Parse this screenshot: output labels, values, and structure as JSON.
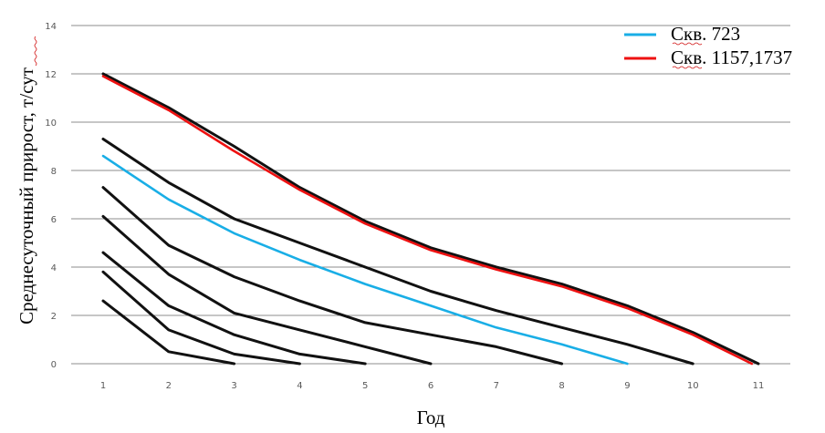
{
  "chart_data": {
    "type": "line",
    "title": "",
    "xlabel": "Год",
    "ylabel": "Среднесуточный прирост, т/сут",
    "xlim": [
      1,
      11
    ],
    "ylim": [
      0,
      14
    ],
    "x_ticks": [
      1,
      2,
      3,
      4,
      5,
      6,
      7,
      8,
      9,
      10,
      11
    ],
    "y_ticks": [
      0,
      2,
      4,
      6,
      8,
      10,
      12,
      14
    ],
    "grid": "horizontal",
    "legend_position": "top-right",
    "legend": [
      {
        "label": "Скв. 723",
        "color": "#19aee6"
      },
      {
        "label": "Скв. 1157,1737",
        "color": "#ee1111"
      }
    ],
    "series": [
      {
        "name": "",
        "color": "#111111",
        "x": [
          1,
          2,
          3,
          4,
          5,
          6,
          7,
          8,
          9,
          10,
          11
        ],
        "y": [
          12.0,
          10.6,
          9.0,
          7.3,
          5.9,
          4.8,
          4.0,
          3.3,
          2.4,
          1.3,
          0.0
        ]
      },
      {
        "name": "Скв. 1157,1737",
        "color": "#ee1111",
        "x": [
          1,
          2,
          3,
          4,
          5,
          6,
          7,
          8,
          9,
          10,
          10.9
        ],
        "y": [
          11.9,
          10.5,
          8.8,
          7.2,
          5.8,
          4.7,
          3.9,
          3.2,
          2.3,
          1.2,
          0.0
        ]
      },
      {
        "name": "",
        "color": "#111111",
        "x": [
          1,
          2,
          3,
          4,
          5,
          6,
          7,
          8,
          9,
          10
        ],
        "y": [
          9.3,
          7.5,
          6.0,
          5.0,
          4.0,
          3.0,
          2.2,
          1.5,
          0.8,
          0.0
        ]
      },
      {
        "name": "Скв. 723",
        "color": "#19aee6",
        "x": [
          1,
          2,
          3,
          4,
          5,
          6,
          7,
          8,
          9
        ],
        "y": [
          8.6,
          6.8,
          5.4,
          4.3,
          3.3,
          2.4,
          1.5,
          0.8,
          0.0
        ]
      },
      {
        "name": "",
        "color": "#111111",
        "x": [
          1,
          2,
          3,
          4,
          5,
          6,
          7,
          8
        ],
        "y": [
          7.3,
          4.9,
          3.6,
          2.6,
          1.7,
          1.2,
          0.7,
          0.0
        ]
      },
      {
        "name": "",
        "color": "#111111",
        "x": [
          1,
          2,
          3,
          4,
          5,
          6
        ],
        "y": [
          6.1,
          3.7,
          2.1,
          1.4,
          0.7,
          0.0
        ]
      },
      {
        "name": "",
        "color": "#111111",
        "x": [
          1,
          2,
          3,
          4,
          5
        ],
        "y": [
          4.6,
          2.4,
          1.2,
          0.4,
          0.0
        ]
      },
      {
        "name": "",
        "color": "#111111",
        "x": [
          1,
          2,
          3,
          4
        ],
        "y": [
          3.8,
          1.4,
          0.4,
          0.0
        ]
      },
      {
        "name": "",
        "color": "#111111",
        "x": [
          1,
          2,
          3
        ],
        "y": [
          2.6,
          0.5,
          0.0
        ]
      }
    ]
  }
}
